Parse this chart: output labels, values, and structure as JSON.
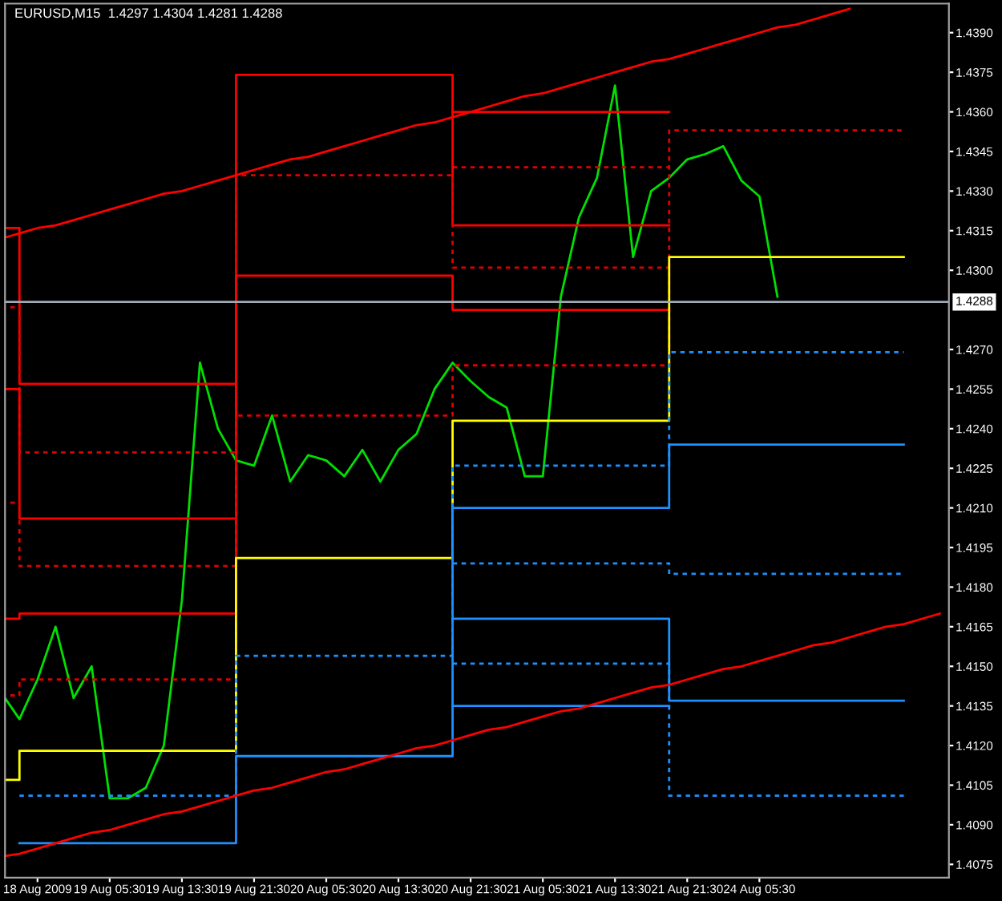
{
  "chart_data": {
    "type": "line",
    "title": "EURUSD,M15  1.4297 1.4304 1.4281 1.4288",
    "categories": [
      null,
      null,
      "18 Aug 2009",
      null,
      null,
      null,
      "19 Aug 05:30",
      null,
      null,
      null,
      "19 Aug 13:30",
      null,
      null,
      null,
      "19 Aug 21:30",
      null,
      null,
      null,
      "20 Aug 05:30",
      null,
      null,
      null,
      "20 Aug 13:30",
      null,
      null,
      null,
      "20 Aug 21:30",
      null,
      null,
      null,
      "21 Aug 05:30",
      null,
      null,
      null,
      "21 Aug 13:30",
      null,
      null,
      null,
      "21 Aug 21:30",
      null,
      null,
      null,
      "24 Aug 05:30",
      null,
      null,
      null,
      null,
      null,
      null,
      null,
      null,
      null,
      null
    ],
    "ylim": [
      1.407,
      1.4401
    ],
    "yticks": [
      {
        "value": 1.4075,
        "label": "1.4075"
      },
      {
        "value": 1.409,
        "label": "1.4090"
      },
      {
        "value": 1.4105,
        "label": "1.4105"
      },
      {
        "value": 1.412,
        "label": "1.4120"
      },
      {
        "value": 1.4135,
        "label": "1.4135"
      },
      {
        "value": 1.415,
        "label": "1.4150"
      },
      {
        "value": 1.4165,
        "label": "1.4165"
      },
      {
        "value": 1.418,
        "label": "1.4180"
      },
      {
        "value": 1.4195,
        "label": "1.4195"
      },
      {
        "value": 1.421,
        "label": "1.4210"
      },
      {
        "value": 1.4225,
        "label": "1.4225"
      },
      {
        "value": 1.424,
        "label": "1.4240"
      },
      {
        "value": 1.4255,
        "label": "1.4255"
      },
      {
        "value": 1.427,
        "label": "1.4270"
      },
      {
        "value": 1.43,
        "label": "1.4300"
      },
      {
        "value": 1.4315,
        "label": "1.4315"
      },
      {
        "value": 1.433,
        "label": "1.4330"
      },
      {
        "value": 1.4345,
        "label": "1.4345"
      },
      {
        "value": 1.436,
        "label": "1.4360"
      },
      {
        "value": 1.4375,
        "label": "1.4375"
      },
      {
        "value": 1.439,
        "label": "1.4390"
      }
    ],
    "grid": false,
    "legend": false,
    "marker": "none",
    "ref_lines": [
      {
        "axis": "y",
        "value": 1.4288,
        "label": "1.4288",
        "color": "#a0aab4",
        "line_style": "solid"
      }
    ],
    "series": [
      {
        "color": "#00e000",
        "line_style": "solid",
        "values": [
          1.414,
          1.413,
          1.4145,
          1.4165,
          1.4138,
          1.415,
          1.41,
          1.41,
          1.4104,
          1.412,
          1.4175,
          1.4265,
          1.424,
          1.4228,
          1.4226,
          1.4245,
          1.422,
          1.423,
          1.4228,
          1.4222,
          1.4232,
          1.422,
          1.4232,
          1.4238,
          1.4255,
          1.4265,
          1.4258,
          1.4252,
          1.4248,
          1.4222,
          1.4222,
          1.429,
          1.432,
          1.4335,
          1.437,
          1.4305,
          1.433,
          1.4335,
          1.4342,
          1.4344,
          1.4347,
          1.4334,
          1.4328,
          1.429,
          null,
          null,
          null,
          null,
          null,
          null,
          null,
          null,
          null
        ]
      },
      {
        "type": "step",
        "color": "#ff0000",
        "line_style": "solid",
        "values": [
          1.4316,
          1.4257,
          1.4257,
          1.4257,
          1.4257,
          1.4257,
          1.4257,
          1.4257,
          1.4257,
          1.4257,
          1.4257,
          1.4257,
          1.4257,
          1.4257,
          null,
          null,
          null,
          null,
          null,
          null,
          null,
          null,
          null,
          null,
          null,
          1.436,
          1.436,
          1.436,
          1.436,
          1.436,
          1.436,
          1.436,
          1.436,
          1.436,
          1.436,
          1.436,
          1.436,
          1.436,
          null,
          null,
          null,
          null,
          null,
          null,
          null,
          null,
          null,
          null,
          null,
          null,
          null,
          null,
          null
        ]
      },
      {
        "type": "step",
        "color": "#e00000",
        "line_style": "dotted",
        "values": [
          1.4286,
          1.4231,
          1.4231,
          1.4231,
          1.4231,
          1.4231,
          1.4231,
          1.4231,
          1.4231,
          1.4231,
          1.4231,
          1.4231,
          1.4231,
          1.4231,
          null,
          null,
          null,
          null,
          null,
          null,
          null,
          null,
          null,
          null,
          null,
          1.4339,
          1.4339,
          1.4339,
          1.4339,
          1.4339,
          1.4339,
          1.4339,
          1.4339,
          1.4339,
          1.4339,
          1.4339,
          1.4339,
          1.4339,
          null,
          null,
          null,
          null,
          null,
          null,
          null,
          null,
          null,
          null,
          null,
          null,
          null,
          null,
          null
        ]
      },
      {
        "type": "step",
        "color": "#ff0000",
        "line_style": "solid",
        "values": [
          1.4255,
          1.4206,
          1.4206,
          1.4206,
          1.4206,
          1.4206,
          1.4206,
          1.4206,
          1.4206,
          1.4206,
          1.4206,
          1.4206,
          1.4206,
          1.4374,
          1.4374,
          1.4374,
          1.4374,
          1.4374,
          1.4374,
          1.4374,
          1.4374,
          1.4374,
          1.4374,
          1.4374,
          1.4374,
          1.4317,
          1.4317,
          1.4317,
          1.4317,
          1.4317,
          1.4317,
          1.4317,
          1.4317,
          1.4317,
          1.4317,
          1.4317,
          1.4317,
          1.4317,
          null,
          null,
          null,
          null,
          null,
          null,
          null,
          null,
          null,
          null,
          null,
          null,
          null,
          null,
          null
        ]
      },
      {
        "type": "step",
        "color": "#e00000",
        "line_style": "dotted",
        "values": [
          1.4212,
          1.4188,
          1.4188,
          1.4188,
          1.4188,
          1.4188,
          1.4188,
          1.4188,
          1.4188,
          1.4188,
          1.4188,
          1.4188,
          1.4188,
          1.4336,
          1.4336,
          1.4336,
          1.4336,
          1.4336,
          1.4336,
          1.4336,
          1.4336,
          1.4336,
          1.4336,
          1.4336,
          1.4336,
          1.4301,
          1.4301,
          1.4301,
          1.4301,
          1.4301,
          1.4301,
          1.4301,
          1.4301,
          1.4301,
          1.4301,
          1.4301,
          1.4301,
          1.4301,
          null,
          null,
          null,
          null,
          null,
          null,
          null,
          null,
          null,
          null,
          null,
          null,
          null,
          null,
          null
        ]
      },
      {
        "type": "step",
        "color": "#ff0000",
        "line_style": "solid",
        "values": [
          1.4168,
          1.417,
          1.417,
          1.417,
          1.417,
          1.417,
          1.417,
          1.417,
          1.417,
          1.417,
          1.417,
          1.417,
          1.417,
          1.4298,
          1.4298,
          1.4298,
          1.4298,
          1.4298,
          1.4298,
          1.4298,
          1.4298,
          1.4298,
          1.4298,
          1.4298,
          1.4298,
          1.4285,
          1.4285,
          1.4285,
          1.4285,
          1.4285,
          1.4285,
          1.4285,
          1.4285,
          1.4285,
          1.4285,
          1.4285,
          1.4285,
          1.4285,
          null,
          null,
          null,
          null,
          null,
          null,
          null,
          null,
          null,
          null,
          null,
          null,
          null,
          null,
          null
        ]
      },
      {
        "type": "step",
        "color": "#e00000",
        "line_style": "dotted",
        "values": [
          1.4139,
          1.4145,
          1.4145,
          1.4145,
          1.4145,
          1.4145,
          1.4145,
          1.4145,
          1.4145,
          1.4145,
          1.4145,
          1.4145,
          1.4145,
          1.4245,
          1.4245,
          1.4245,
          1.4245,
          1.4245,
          1.4245,
          1.4245,
          1.4245,
          1.4245,
          1.4245,
          1.4245,
          1.4245,
          1.4264,
          1.4264,
          1.4264,
          1.4264,
          1.4264,
          1.4264,
          1.4264,
          1.4264,
          1.4264,
          1.4264,
          1.4264,
          1.4264,
          1.4353,
          1.4353,
          1.4353,
          1.4353,
          1.4353,
          1.4353,
          1.4353,
          1.4353,
          1.4353,
          1.4353,
          1.4353,
          1.4353,
          1.4353,
          1.4353,
          null,
          null
        ]
      },
      {
        "type": "step",
        "color": "#ffff00",
        "line_style": "solid",
        "values": [
          1.4107,
          1.4118,
          1.4118,
          1.4118,
          1.4118,
          1.4118,
          1.4118,
          1.4118,
          1.4118,
          1.4118,
          1.4118,
          1.4118,
          1.4118,
          1.4191,
          1.4191,
          1.4191,
          1.4191,
          1.4191,
          1.4191,
          1.4191,
          1.4191,
          1.4191,
          1.4191,
          1.4191,
          1.4191,
          1.4243,
          1.4243,
          1.4243,
          1.4243,
          1.4243,
          1.4243,
          1.4243,
          1.4243,
          1.4243,
          1.4243,
          1.4243,
          1.4243,
          1.4305,
          1.4305,
          1.4305,
          1.4305,
          1.4305,
          1.4305,
          1.4305,
          1.4305,
          1.4305,
          1.4305,
          1.4305,
          1.4305,
          1.4305,
          1.4305,
          null,
          null
        ]
      },
      {
        "type": "step",
        "color": "#1e90ff",
        "line_style": "dotted",
        "values": [
          null,
          1.4101,
          1.4101,
          1.4101,
          1.4101,
          1.4101,
          1.4101,
          1.4101,
          1.4101,
          1.4101,
          1.4101,
          1.4101,
          1.4101,
          1.4154,
          1.4154,
          1.4154,
          1.4154,
          1.4154,
          1.4154,
          1.4154,
          1.4154,
          1.4154,
          1.4154,
          1.4154,
          1.4154,
          1.4226,
          1.4226,
          1.4226,
          1.4226,
          1.4226,
          1.4226,
          1.4226,
          1.4226,
          1.4226,
          1.4226,
          1.4226,
          1.4226,
          1.4269,
          1.4269,
          1.4269,
          1.4269,
          1.4269,
          1.4269,
          1.4269,
          1.4269,
          1.4269,
          1.4269,
          1.4269,
          1.4269,
          1.4269,
          1.4269,
          null,
          null
        ]
      },
      {
        "type": "step",
        "color": "#1e90ff",
        "line_style": "solid",
        "values": [
          null,
          1.4083,
          1.4083,
          1.4083,
          1.4083,
          1.4083,
          1.4083,
          1.4083,
          1.4083,
          1.4083,
          1.4083,
          1.4083,
          1.4083,
          1.4116,
          1.4116,
          1.4116,
          1.4116,
          1.4116,
          1.4116,
          1.4116,
          1.4116,
          1.4116,
          1.4116,
          1.4116,
          1.4116,
          1.421,
          1.421,
          1.421,
          1.421,
          1.421,
          1.421,
          1.421,
          1.421,
          1.421,
          1.421,
          1.421,
          1.421,
          1.4234,
          1.4234,
          1.4234,
          1.4234,
          1.4234,
          1.4234,
          1.4234,
          1.4234,
          1.4234,
          1.4234,
          1.4234,
          1.4234,
          1.4234,
          1.4234,
          null,
          null
        ]
      },
      {
        "type": "step",
        "color": "#1e90ff",
        "line_style": "dotted",
        "values": [
          null,
          null,
          null,
          null,
          null,
          null,
          null,
          null,
          null,
          null,
          null,
          null,
          null,
          null,
          null,
          null,
          null,
          null,
          null,
          null,
          null,
          null,
          null,
          null,
          null,
          1.4189,
          1.4189,
          1.4189,
          1.4189,
          1.4189,
          1.4189,
          1.4189,
          1.4189,
          1.4189,
          1.4189,
          1.4189,
          1.4189,
          1.4185,
          1.4185,
          1.4185,
          1.4185,
          1.4185,
          1.4185,
          1.4185,
          1.4185,
          1.4185,
          1.4185,
          1.4185,
          1.4185,
          1.4185,
          1.4185,
          null,
          null
        ]
      },
      {
        "type": "step",
        "color": "#1e90ff",
        "line_style": "solid",
        "values": [
          null,
          null,
          null,
          null,
          null,
          null,
          null,
          null,
          null,
          null,
          null,
          null,
          null,
          null,
          null,
          null,
          null,
          null,
          null,
          null,
          null,
          null,
          null,
          null,
          null,
          1.4168,
          1.4168,
          1.4168,
          1.4168,
          1.4168,
          1.4168,
          1.4168,
          1.4168,
          1.4168,
          1.4168,
          1.4168,
          1.4168,
          1.4137,
          1.4137,
          1.4137,
          1.4137,
          1.4137,
          1.4137,
          1.4137,
          1.4137,
          1.4137,
          1.4137,
          1.4137,
          1.4137,
          1.4137,
          1.4137,
          null,
          null
        ]
      },
      {
        "type": "step",
        "color": "#1e90ff",
        "line_style": "dotted",
        "values": [
          null,
          null,
          null,
          null,
          null,
          null,
          null,
          null,
          null,
          null,
          null,
          null,
          null,
          null,
          null,
          null,
          null,
          null,
          null,
          null,
          null,
          null,
          null,
          null,
          null,
          1.4151,
          1.4151,
          1.4151,
          1.4151,
          1.4151,
          1.4151,
          1.4151,
          1.4151,
          1.4151,
          1.4151,
          1.4151,
          1.4151,
          1.4101,
          1.4101,
          1.4101,
          1.4101,
          1.4101,
          1.4101,
          1.4101,
          1.4101,
          1.4101,
          1.4101,
          1.4101,
          1.4101,
          1.4101,
          1.4101,
          null,
          null
        ]
      },
      {
        "type": "step",
        "color": "#1e90ff",
        "line_style": "solid",
        "values": [
          null,
          null,
          null,
          null,
          null,
          null,
          null,
          null,
          null,
          null,
          null,
          null,
          null,
          null,
          null,
          null,
          null,
          null,
          null,
          null,
          null,
          null,
          null,
          null,
          null,
          1.4135,
          1.4135,
          1.4135,
          1.4135,
          1.4135,
          1.4135,
          1.4135,
          1.4135,
          1.4135,
          1.4135,
          1.4135,
          1.4135,
          1.4135,
          null,
          null,
          null,
          null,
          null,
          null,
          null,
          null,
          null,
          null,
          null,
          null,
          null,
          null,
          null
        ]
      },
      {
        "color": "#ff0000",
        "line_style": "solid",
        "values": [
          1.4312,
          1.4314,
          1.4316,
          1.4317,
          1.4319,
          1.4321,
          1.4323,
          1.4325,
          1.4327,
          1.4329,
          1.433,
          1.4332,
          1.4334,
          1.4336,
          1.4338,
          1.434,
          1.4342,
          1.4343,
          1.4345,
          1.4347,
          1.4349,
          1.4351,
          1.4353,
          1.4355,
          1.4356,
          1.4358,
          1.436,
          1.4362,
          1.4364,
          1.4366,
          1.4367,
          1.4369,
          1.4371,
          1.4373,
          1.4375,
          1.4377,
          1.4379,
          1.438,
          1.4382,
          1.4384,
          1.4386,
          1.4388,
          1.439,
          1.4392,
          1.4393,
          1.4395,
          1.4397,
          1.4399,
          null,
          null,
          null,
          null,
          null
        ]
      },
      {
        "color": "#ff0000",
        "line_style": "solid",
        "values": [
          1.4078,
          1.4079,
          1.4081,
          1.4083,
          1.4085,
          1.4087,
          1.4088,
          1.409,
          1.4092,
          1.4094,
          1.4095,
          1.4097,
          1.4099,
          1.4101,
          1.4103,
          1.4104,
          1.4106,
          1.4108,
          1.411,
          1.4111,
          1.4113,
          1.4115,
          1.4117,
          1.4119,
          1.412,
          1.4122,
          1.4124,
          1.4126,
          1.4127,
          1.4129,
          1.4131,
          1.4133,
          1.4134,
          1.4136,
          1.4138,
          1.414,
          1.4142,
          1.4143,
          1.4145,
          1.4147,
          1.4149,
          1.415,
          1.4152,
          1.4154,
          1.4156,
          1.4158,
          1.4159,
          1.4161,
          1.4163,
          1.4165,
          1.4166,
          1.4168,
          1.417
        ]
      }
    ]
  }
}
